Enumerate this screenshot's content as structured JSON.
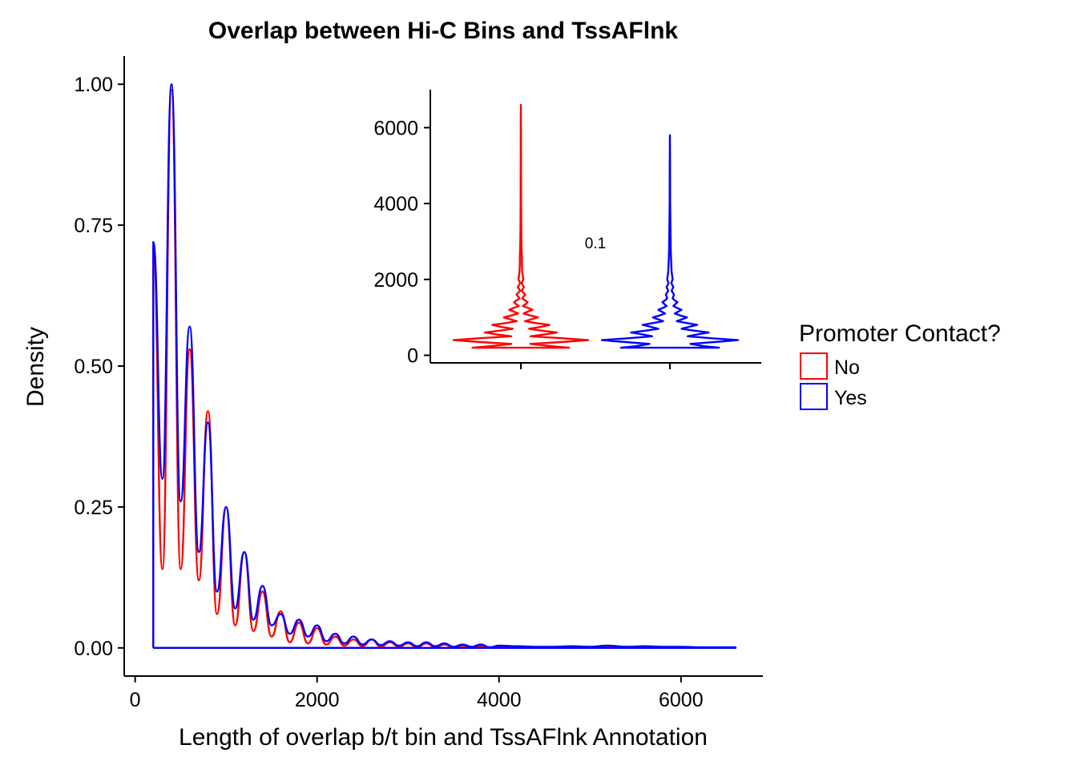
{
  "chart_data": [
    {
      "type": "line",
      "title": "Overlap between Hi-C Bins and TssAFlnk",
      "xlabel": "Length of overlap b/t bin and TssAFlnk Annotation",
      "ylabel": "Density",
      "xlim": [
        -120,
        6900
      ],
      "ylim": [
        -0.05,
        1.05
      ],
      "xticks": [
        0,
        2000,
        4000,
        6000
      ],
      "xtick_labels": [
        "0",
        "2000",
        "4000",
        "6000"
      ],
      "yticks": [
        0,
        0.25,
        0.5,
        0.75,
        1.0
      ],
      "ytick_labels": [
        "0.00",
        "0.25",
        "0.50",
        "0.75",
        "1.00"
      ],
      "grid": false,
      "series": [
        {
          "name": "No",
          "color": "#FF0000",
          "x": [
            200,
            200,
            300,
            400,
            500,
            600,
            700,
            800,
            900,
            1000,
            1100,
            1200,
            1300,
            1400,
            1500,
            1600,
            1700,
            1800,
            1900,
            2000,
            2100,
            2200,
            2300,
            2400,
            2500,
            2600,
            2700,
            2800,
            2900,
            3000,
            3100,
            3200,
            3300,
            3400,
            3500,
            3600,
            3700,
            3800,
            3900,
            4000,
            4200,
            4400,
            4600,
            4800,
            5000,
            5200,
            5400,
            5600,
            5800,
            6000,
            6200,
            6400,
            6600,
            6600
          ],
          "values": [
            0,
            0.71,
            0.14,
            0.99,
            0.14,
            0.53,
            0.12,
            0.42,
            0.06,
            0.25,
            0.04,
            0.17,
            0.03,
            0.1,
            0.02,
            0.065,
            0.01,
            0.045,
            0.008,
            0.035,
            0.006,
            0.02,
            0.004,
            0.015,
            0.003,
            0.015,
            0.002,
            0.01,
            0.002,
            0.008,
            0.001,
            0.008,
            0.001,
            0.006,
            0.001,
            0.004,
            0.001,
            0.003,
            0.001,
            0.002,
            0.002,
            0.001,
            0.001,
            0.001,
            0.001,
            0.002,
            0.001,
            0.001,
            0.001,
            0.001,
            0.0005,
            0.0005,
            0.0005,
            0
          ]
        },
        {
          "name": "Yes",
          "color": "#0000FF",
          "x": [
            200,
            200,
            300,
            400,
            500,
            600,
            700,
            800,
            900,
            1000,
            1100,
            1200,
            1300,
            1400,
            1500,
            1600,
            1700,
            1800,
            1900,
            2000,
            2100,
            2200,
            2300,
            2400,
            2500,
            2600,
            2700,
            2800,
            2900,
            3000,
            3100,
            3200,
            3300,
            3400,
            3500,
            3600,
            3700,
            3800,
            3900,
            4000,
            4200,
            4400,
            4600,
            4800,
            5000,
            5200,
            5400,
            5600,
            5800,
            6000,
            6200,
            6400,
            6600,
            6600
          ],
          "values": [
            0,
            0.72,
            0.3,
            1.0,
            0.26,
            0.57,
            0.17,
            0.4,
            0.1,
            0.25,
            0.07,
            0.17,
            0.05,
            0.11,
            0.04,
            0.06,
            0.025,
            0.05,
            0.02,
            0.04,
            0.012,
            0.025,
            0.008,
            0.02,
            0.006,
            0.015,
            0.005,
            0.012,
            0.004,
            0.01,
            0.003,
            0.01,
            0.003,
            0.008,
            0.002,
            0.006,
            0.002,
            0.006,
            0.001,
            0.004,
            0.003,
            0.002,
            0.002,
            0.003,
            0.002,
            0.004,
            0.002,
            0.003,
            0.002,
            0.002,
            0.001,
            0.001,
            0.001,
            0
          ]
        }
      ]
    },
    {
      "type": "violin",
      "ylim": [
        -200,
        7000
      ],
      "yticks": [
        0,
        2000,
        4000,
        6000
      ],
      "ytick_labels": [
        "0",
        "2000",
        "4000",
        "6000"
      ],
      "annotation": "0.1",
      "grid": false,
      "series": [
        {
          "name": "No",
          "color": "#FF0000",
          "max": 6600,
          "profile_y": [
            200,
            240,
            300,
            350,
            400,
            450,
            500,
            550,
            600,
            650,
            700,
            750,
            800,
            850,
            900,
            950,
            1000,
            1050,
            1100,
            1150,
            1200,
            1250,
            1300,
            1350,
            1400,
            1450,
            1500,
            1550,
            1600,
            1700,
            1800,
            1900,
            2000,
            2200,
            2400,
            2600,
            2800,
            3000,
            3300,
            4000,
            5000,
            6000,
            6600
          ],
          "profile_w": [
            0.71,
            0.45,
            0.14,
            0.6,
            0.99,
            0.6,
            0.14,
            0.35,
            0.53,
            0.3,
            0.12,
            0.3,
            0.42,
            0.22,
            0.06,
            0.16,
            0.25,
            0.14,
            0.04,
            0.1,
            0.17,
            0.1,
            0.03,
            0.07,
            0.1,
            0.06,
            0.02,
            0.04,
            0.065,
            0.01,
            0.045,
            0.01,
            0.035,
            0.02,
            0.015,
            0.015,
            0.01,
            0.008,
            0.006,
            0.003,
            0.002,
            0.001,
            0
          ]
        },
        {
          "name": "Yes",
          "color": "#0000FF",
          "max": 5800,
          "profile_y": [
            200,
            240,
            300,
            350,
            400,
            450,
            500,
            550,
            600,
            650,
            700,
            750,
            800,
            850,
            900,
            950,
            1000,
            1050,
            1100,
            1150,
            1200,
            1250,
            1300,
            1350,
            1400,
            1450,
            1500,
            1550,
            1600,
            1700,
            1800,
            1900,
            2000,
            2200,
            2400,
            2600,
            2800,
            3000,
            3300,
            4000,
            5000,
            5800
          ],
          "profile_w": [
            0.72,
            0.5,
            0.3,
            0.65,
            1.0,
            0.6,
            0.26,
            0.4,
            0.57,
            0.35,
            0.17,
            0.28,
            0.4,
            0.25,
            0.1,
            0.18,
            0.25,
            0.15,
            0.07,
            0.12,
            0.17,
            0.1,
            0.05,
            0.08,
            0.11,
            0.07,
            0.04,
            0.05,
            0.06,
            0.025,
            0.05,
            0.02,
            0.04,
            0.025,
            0.02,
            0.015,
            0.012,
            0.01,
            0.008,
            0.004,
            0.002,
            0
          ]
        }
      ]
    }
  ],
  "legend": {
    "title": "Promoter Contact?",
    "items": [
      {
        "label": "No",
        "color": "#FF0000"
      },
      {
        "label": "Yes",
        "color": "#0000FF"
      }
    ]
  }
}
